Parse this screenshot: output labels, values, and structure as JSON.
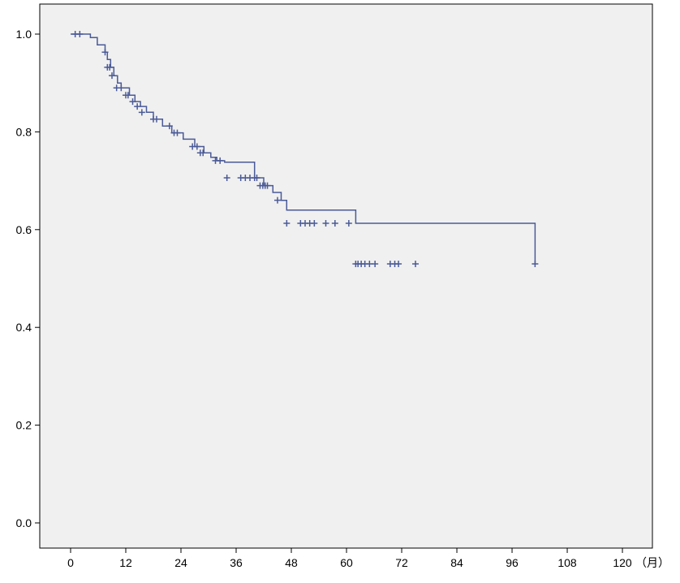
{
  "chart_data": {
    "type": "line",
    "title": "",
    "xlabel": "",
    "ylabel": "",
    "x_unit": "（月）",
    "xlim": [
      0,
      120
    ],
    "ylim": [
      0,
      1.0
    ],
    "x_ticks": [
      0,
      12,
      24,
      36,
      48,
      60,
      72,
      84,
      96,
      108,
      120
    ],
    "y_ticks": [
      0.0,
      0.2,
      0.4,
      0.6,
      0.8,
      1.0
    ],
    "y_tick_labels": [
      "0.0",
      "0.2",
      "0.4",
      "0.6",
      "0.8",
      "1.0"
    ],
    "grid": false,
    "colors": {
      "series": "#4a5a97",
      "plot_background": "#f0f0f0",
      "axis": "#000000"
    },
    "series": [
      {
        "step_x": [
          0,
          3.5,
          4.3,
          5.8,
          7.5,
          8,
          8.7,
          9.4,
          10.2,
          11,
          12,
          12.8,
          14,
          15.2,
          16.5,
          18,
          20,
          22,
          24.5,
          27,
          29,
          30.5,
          31.8,
          33.5,
          40,
          42,
          44,
          45.8,
          47,
          62,
          101
        ],
        "step_y": [
          1.0,
          1.0,
          0.993,
          0.978,
          0.963,
          0.948,
          0.932,
          0.915,
          0.9,
          0.89,
          0.89,
          0.875,
          0.862,
          0.852,
          0.84,
          0.826,
          0.812,
          0.798,
          0.785,
          0.77,
          0.757,
          0.748,
          0.741,
          0.738,
          0.706,
          0.69,
          0.676,
          0.66,
          0.64,
          0.613,
          0.53
        ],
        "censor_x": [
          1,
          2,
          7.5,
          8,
          8.5,
          9,
          10,
          11,
          12,
          12.5,
          13.5,
          14.5,
          15.5,
          18,
          18.7,
          21.5,
          22.5,
          23.2,
          26.5,
          27.5,
          28.2,
          28.8,
          31.5,
          32.5,
          34,
          37,
          38,
          39,
          40,
          40.5,
          41.2,
          41.8,
          42.3,
          42.8,
          45,
          47,
          50,
          51,
          52,
          53,
          55.5,
          57.5,
          60.5,
          62,
          62.5,
          63.2,
          64,
          65,
          66.2,
          69.5,
          70.5,
          71.3,
          75,
          101
        ],
        "censor_y": [
          1.0,
          1.0,
          0.963,
          0.932,
          0.932,
          0.915,
          0.89,
          0.89,
          0.875,
          0.875,
          0.862,
          0.852,
          0.84,
          0.826,
          0.826,
          0.812,
          0.798,
          0.798,
          0.77,
          0.77,
          0.757,
          0.757,
          0.741,
          0.741,
          0.706,
          0.706,
          0.706,
          0.706,
          0.706,
          0.706,
          0.69,
          0.69,
          0.69,
          0.69,
          0.66,
          0.613,
          0.613,
          0.613,
          0.613,
          0.613,
          0.613,
          0.613,
          0.613,
          0.53,
          0.53,
          0.53,
          0.53,
          0.53,
          0.53,
          0.53,
          0.53,
          0.53,
          0.53,
          0.53
        ]
      }
    ]
  }
}
